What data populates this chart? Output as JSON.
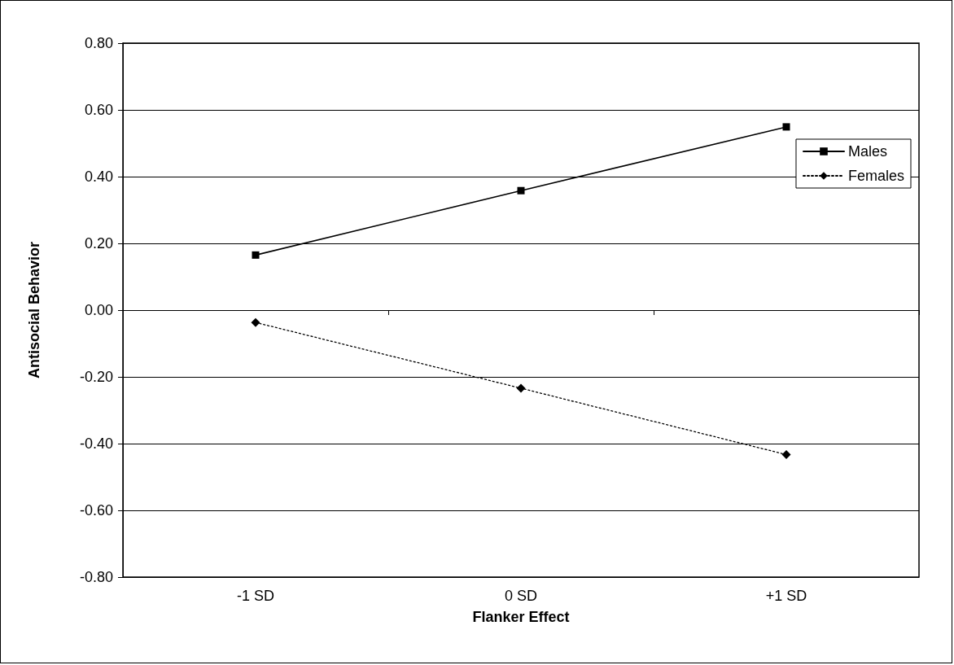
{
  "chart_data": {
    "type": "line",
    "xlabel": "Flanker Effect",
    "ylabel": "Antisocial Behavior",
    "categories": [
      "-1 SD",
      "0 SD",
      "+1 SD"
    ],
    "series": [
      {
        "name": "Males",
        "color": "#000000",
        "values": [
          0.165,
          0.358,
          0.549
        ],
        "marker": "square",
        "line_style": "solid"
      },
      {
        "name": "Females",
        "color": "#000000",
        "values": [
          -0.037,
          -0.234,
          -0.433
        ],
        "marker": "diamond",
        "line_style": "dotted"
      }
    ],
    "ylim": [
      -0.8,
      0.8
    ],
    "yticks": [
      {
        "value": -0.8,
        "label": "-0.80"
      },
      {
        "value": -0.6,
        "label": "-0.60"
      },
      {
        "value": -0.4,
        "label": "-0.40"
      },
      {
        "value": -0.2,
        "label": "-0.20"
      },
      {
        "value": 0,
        "label": "0.00"
      },
      {
        "value": 0.2,
        "label": "0.20"
      },
      {
        "value": 0.4,
        "label": "0.40"
      },
      {
        "value": 0.6,
        "label": "0.60"
      },
      {
        "value": 0.8,
        "label": "0.80"
      }
    ],
    "grid": "y",
    "legend": "right"
  }
}
